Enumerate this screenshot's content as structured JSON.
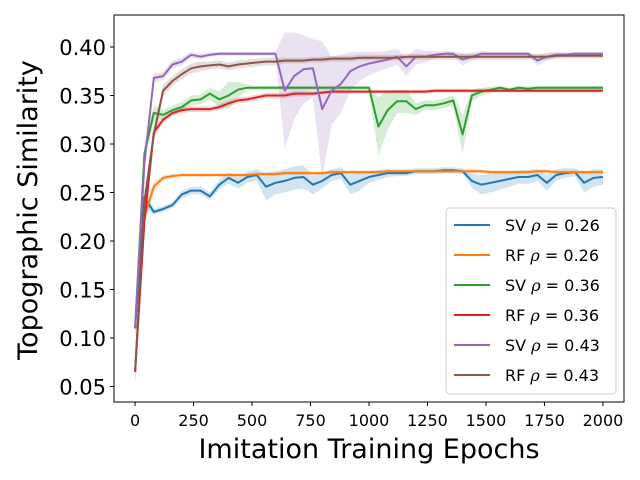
{
  "chart_data": {
    "type": "line",
    "title": "",
    "xlabel": "Imitation Training Epochs",
    "ylabel": "Topographic Similarity",
    "xlim": [
      -90,
      2090
    ],
    "ylim": [
      0.034,
      0.433
    ],
    "xticks": [
      0,
      250,
      500,
      750,
      1000,
      1250,
      1500,
      1750,
      2000
    ],
    "yticks": [
      0.05,
      0.1,
      0.15,
      0.2,
      0.25,
      0.3,
      0.35,
      0.4
    ],
    "xtick_labels": [
      "0",
      "250",
      "500",
      "750",
      "1000",
      "1250",
      "1500",
      "1750",
      "2000"
    ],
    "ytick_labels": [
      "0.05",
      "0.10",
      "0.15",
      "0.20",
      "0.25",
      "0.30",
      "0.35",
      "0.40"
    ],
    "grid": false,
    "legend_position": "lower-right",
    "series": [
      {
        "name": "SV ρ = 0.26",
        "label_prefix": "SV",
        "label_rho": "0.26",
        "color": "#1f77b4",
        "x": [
          0,
          40,
          80,
          120,
          160,
          200,
          240,
          280,
          320,
          360,
          400,
          440,
          480,
          520,
          560,
          600,
          640,
          680,
          720,
          760,
          800,
          840,
          880,
          920,
          960,
          1000,
          1040,
          1080,
          1120,
          1160,
          1200,
          1240,
          1280,
          1320,
          1360,
          1400,
          1440,
          1480,
          1520,
          1560,
          1600,
          1640,
          1680,
          1720,
          1760,
          1800,
          1840,
          1880,
          1920,
          1960,
          2000
        ],
        "values": [
          0.11,
          0.245,
          0.23,
          0.233,
          0.237,
          0.248,
          0.252,
          0.252,
          0.246,
          0.258,
          0.265,
          0.26,
          0.266,
          0.268,
          0.256,
          0.26,
          0.262,
          0.265,
          0.266,
          0.258,
          0.262,
          0.268,
          0.27,
          0.258,
          0.262,
          0.266,
          0.268,
          0.27,
          0.27,
          0.27,
          0.272,
          0.272,
          0.272,
          0.273,
          0.273,
          0.272,
          0.262,
          0.258,
          0.26,
          0.262,
          0.264,
          0.266,
          0.266,
          0.268,
          0.26,
          0.268,
          0.27,
          0.271,
          0.26,
          0.265,
          0.266
        ],
        "band": [
          0.01,
          0.01,
          0.003,
          0.003,
          0.003,
          0.004,
          0.004,
          0.004,
          0.004,
          0.005,
          0.006,
          0.006,
          0.006,
          0.006,
          0.014,
          0.012,
          0.012,
          0.012,
          0.012,
          0.01,
          0.008,
          0.006,
          0.006,
          0.01,
          0.01,
          0.006,
          0.005,
          0.004,
          0.003,
          0.003,
          0.003,
          0.003,
          0.003,
          0.003,
          0.003,
          0.003,
          0.007,
          0.01,
          0.01,
          0.009,
          0.008,
          0.007,
          0.007,
          0.006,
          0.008,
          0.006,
          0.005,
          0.004,
          0.01,
          0.009,
          0.008
        ]
      },
      {
        "name": "RF ρ = 0.26",
        "label_prefix": "RF",
        "label_rho": "0.26",
        "color": "#ff7f0e",
        "x": [
          0,
          40,
          80,
          120,
          160,
          200,
          240,
          280,
          320,
          360,
          400,
          440,
          480,
          520,
          560,
          600,
          640,
          680,
          720,
          760,
          800,
          840,
          880,
          920,
          960,
          1000,
          1040,
          1080,
          1120,
          1160,
          1200,
          1240,
          1280,
          1320,
          1360,
          1400,
          1440,
          1480,
          1520,
          1560,
          1600,
          1640,
          1680,
          1720,
          1760,
          1800,
          1840,
          1880,
          1920,
          1960,
          2000
        ],
        "values": [
          0.065,
          0.225,
          0.256,
          0.265,
          0.267,
          0.268,
          0.268,
          0.268,
          0.268,
          0.268,
          0.268,
          0.268,
          0.268,
          0.269,
          0.269,
          0.269,
          0.27,
          0.27,
          0.27,
          0.27,
          0.27,
          0.271,
          0.271,
          0.271,
          0.271,
          0.271,
          0.271,
          0.272,
          0.272,
          0.272,
          0.272,
          0.272,
          0.272,
          0.272,
          0.272,
          0.272,
          0.272,
          0.272,
          0.271,
          0.271,
          0.271,
          0.271,
          0.271,
          0.272,
          0.272,
          0.271,
          0.271,
          0.271,
          0.271,
          0.271,
          0.271
        ],
        "band": [
          0.01,
          0.01,
          0.005,
          0.003,
          0.002,
          0.002,
          0.002,
          0.002,
          0.002,
          0.002,
          0.002,
          0.002,
          0.002,
          0.002,
          0.002,
          0.002,
          0.002,
          0.002,
          0.002,
          0.002,
          0.002,
          0.002,
          0.002,
          0.002,
          0.002,
          0.002,
          0.002,
          0.002,
          0.002,
          0.002,
          0.002,
          0.002,
          0.002,
          0.002,
          0.002,
          0.002,
          0.002,
          0.002,
          0.002,
          0.002,
          0.002,
          0.002,
          0.002,
          0.002,
          0.002,
          0.002,
          0.002,
          0.002,
          0.002,
          0.002,
          0.002
        ]
      },
      {
        "name": "SV ρ = 0.36",
        "label_prefix": "SV",
        "label_rho": "0.36",
        "color": "#2ca02c",
        "x": [
          0,
          40,
          80,
          120,
          160,
          200,
          240,
          280,
          320,
          360,
          400,
          440,
          480,
          520,
          560,
          600,
          640,
          680,
          720,
          760,
          800,
          840,
          880,
          920,
          960,
          1000,
          1040,
          1080,
          1120,
          1160,
          1200,
          1240,
          1280,
          1320,
          1360,
          1400,
          1440,
          1480,
          1520,
          1560,
          1600,
          1640,
          1680,
          1720,
          1760,
          1800,
          1840,
          1880,
          1920,
          1960,
          2000
        ],
        "values": [
          0.11,
          0.29,
          0.332,
          0.33,
          0.335,
          0.338,
          0.345,
          0.346,
          0.352,
          0.346,
          0.35,
          0.356,
          0.358,
          0.358,
          0.358,
          0.358,
          0.358,
          0.358,
          0.358,
          0.358,
          0.358,
          0.358,
          0.358,
          0.358,
          0.358,
          0.358,
          0.318,
          0.335,
          0.344,
          0.344,
          0.336,
          0.34,
          0.34,
          0.342,
          0.345,
          0.31,
          0.35,
          0.354,
          0.356,
          0.358,
          0.356,
          0.358,
          0.357,
          0.358,
          0.358,
          0.358,
          0.358,
          0.358,
          0.358,
          0.358,
          0.358
        ],
        "band": [
          0.01,
          0.01,
          0.008,
          0.005,
          0.005,
          0.005,
          0.005,
          0.005,
          0.006,
          0.008,
          0.014,
          0.008,
          0.003,
          0.002,
          0.002,
          0.002,
          0.002,
          0.002,
          0.002,
          0.002,
          0.002,
          0.002,
          0.002,
          0.002,
          0.002,
          0.002,
          0.03,
          0.02,
          0.012,
          0.012,
          0.006,
          0.005,
          0.005,
          0.005,
          0.005,
          0.02,
          0.006,
          0.004,
          0.003,
          0.002,
          0.002,
          0.002,
          0.002,
          0.002,
          0.002,
          0.002,
          0.002,
          0.002,
          0.002,
          0.002,
          0.002
        ]
      },
      {
        "name": "RF ρ = 0.36",
        "label_prefix": "RF",
        "label_rho": "0.36",
        "color": "#d62728",
        "x": [
          0,
          40,
          80,
          120,
          160,
          200,
          240,
          280,
          320,
          360,
          400,
          440,
          480,
          520,
          560,
          600,
          640,
          680,
          720,
          760,
          800,
          840,
          880,
          920,
          960,
          1000,
          1040,
          1080,
          1120,
          1160,
          1200,
          1240,
          1280,
          1320,
          1360,
          1400,
          1440,
          1480,
          1520,
          1560,
          1600,
          1640,
          1680,
          1720,
          1760,
          1800,
          1840,
          1880,
          1920,
          1960,
          2000
        ],
        "values": [
          0.065,
          0.22,
          0.312,
          0.325,
          0.332,
          0.335,
          0.336,
          0.336,
          0.336,
          0.338,
          0.342,
          0.345,
          0.346,
          0.348,
          0.35,
          0.35,
          0.35,
          0.352,
          0.352,
          0.352,
          0.353,
          0.354,
          0.354,
          0.354,
          0.354,
          0.354,
          0.354,
          0.354,
          0.354,
          0.354,
          0.354,
          0.354,
          0.355,
          0.355,
          0.355,
          0.355,
          0.355,
          0.355,
          0.355,
          0.355,
          0.355,
          0.355,
          0.355,
          0.355,
          0.355,
          0.355,
          0.355,
          0.355,
          0.355,
          0.355,
          0.355
        ],
        "band": [
          0.01,
          0.01,
          0.006,
          0.003,
          0.003,
          0.003,
          0.003,
          0.003,
          0.003,
          0.003,
          0.003,
          0.003,
          0.003,
          0.003,
          0.003,
          0.003,
          0.003,
          0.003,
          0.003,
          0.002,
          0.002,
          0.002,
          0.002,
          0.002,
          0.002,
          0.002,
          0.002,
          0.002,
          0.002,
          0.002,
          0.002,
          0.002,
          0.002,
          0.002,
          0.002,
          0.002,
          0.002,
          0.002,
          0.002,
          0.002,
          0.002,
          0.002,
          0.002,
          0.002,
          0.002,
          0.002,
          0.002,
          0.002,
          0.002,
          0.002,
          0.002
        ]
      },
      {
        "name": "SV ρ = 0.43",
        "label_prefix": "SV",
        "label_rho": "0.43",
        "color": "#9467bd",
        "x": [
          0,
          40,
          80,
          120,
          160,
          200,
          240,
          280,
          320,
          360,
          400,
          440,
          480,
          520,
          560,
          600,
          640,
          680,
          720,
          760,
          800,
          840,
          880,
          920,
          960,
          1000,
          1040,
          1080,
          1120,
          1160,
          1200,
          1240,
          1280,
          1320,
          1360,
          1400,
          1440,
          1480,
          1520,
          1560,
          1600,
          1640,
          1680,
          1720,
          1760,
          1800,
          1840,
          1880,
          1920,
          1960,
          2000
        ],
        "values": [
          0.11,
          0.28,
          0.368,
          0.37,
          0.382,
          0.385,
          0.392,
          0.39,
          0.392,
          0.393,
          0.393,
          0.393,
          0.393,
          0.393,
          0.393,
          0.393,
          0.355,
          0.37,
          0.377,
          0.378,
          0.336,
          0.355,
          0.362,
          0.375,
          0.38,
          0.383,
          0.385,
          0.387,
          0.39,
          0.38,
          0.39,
          0.39,
          0.392,
          0.393,
          0.393,
          0.387,
          0.39,
          0.393,
          0.393,
          0.393,
          0.393,
          0.393,
          0.393,
          0.386,
          0.39,
          0.392,
          0.392,
          0.393,
          0.393,
          0.393,
          0.393
        ],
        "band": [
          0.01,
          0.01,
          0.005,
          0.004,
          0.004,
          0.004,
          0.003,
          0.003,
          0.002,
          0.002,
          0.002,
          0.002,
          0.002,
          0.002,
          0.002,
          0.002,
          0.06,
          0.045,
          0.035,
          0.03,
          0.07,
          0.035,
          0.03,
          0.02,
          0.015,
          0.012,
          0.01,
          0.009,
          0.008,
          0.01,
          0.008,
          0.006,
          0.004,
          0.003,
          0.003,
          0.006,
          0.004,
          0.003,
          0.002,
          0.002,
          0.002,
          0.002,
          0.002,
          0.005,
          0.004,
          0.003,
          0.002,
          0.002,
          0.002,
          0.002,
          0.002
        ]
      },
      {
        "name": "RF ρ = 0.43",
        "label_prefix": "RF",
        "label_rho": "0.43",
        "color": "#8c564b",
        "x": [
          0,
          40,
          80,
          120,
          160,
          200,
          240,
          280,
          320,
          360,
          400,
          440,
          480,
          520,
          560,
          600,
          640,
          680,
          720,
          760,
          800,
          840,
          880,
          920,
          960,
          1000,
          1040,
          1080,
          1120,
          1160,
          1200,
          1240,
          1280,
          1320,
          1360,
          1400,
          1440,
          1480,
          1520,
          1560,
          1600,
          1640,
          1680,
          1720,
          1760,
          1800,
          1840,
          1880,
          1920,
          1960,
          2000
        ],
        "values": [
          0.065,
          0.24,
          0.31,
          0.355,
          0.365,
          0.372,
          0.378,
          0.38,
          0.381,
          0.382,
          0.38,
          0.382,
          0.383,
          0.384,
          0.385,
          0.385,
          0.386,
          0.386,
          0.386,
          0.387,
          0.387,
          0.388,
          0.388,
          0.388,
          0.389,
          0.389,
          0.389,
          0.389,
          0.389,
          0.39,
          0.39,
          0.39,
          0.39,
          0.39,
          0.39,
          0.39,
          0.39,
          0.39,
          0.39,
          0.39,
          0.39,
          0.39,
          0.39,
          0.39,
          0.39,
          0.391,
          0.391,
          0.391,
          0.391,
          0.391,
          0.391
        ],
        "band": [
          0.012,
          0.01,
          0.008,
          0.006,
          0.005,
          0.005,
          0.005,
          0.005,
          0.004,
          0.004,
          0.004,
          0.004,
          0.004,
          0.004,
          0.004,
          0.004,
          0.003,
          0.003,
          0.003,
          0.003,
          0.003,
          0.003,
          0.003,
          0.003,
          0.003,
          0.003,
          0.003,
          0.003,
          0.003,
          0.003,
          0.003,
          0.003,
          0.003,
          0.003,
          0.003,
          0.003,
          0.003,
          0.003,
          0.003,
          0.003,
          0.003,
          0.003,
          0.003,
          0.003,
          0.003,
          0.003,
          0.003,
          0.003,
          0.003,
          0.003,
          0.003
        ]
      }
    ]
  }
}
